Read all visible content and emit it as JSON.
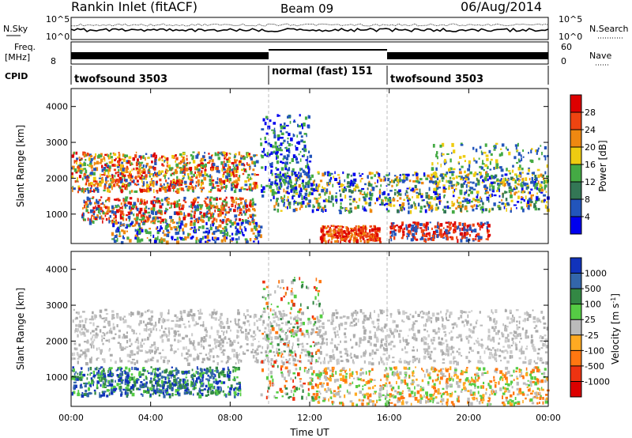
{
  "header": {
    "station": "Rankin Inlet (fitACF)",
    "beam": "Beam 09",
    "date": "06/Aug/2014"
  },
  "noise_panel": {
    "left_label": "N.Sky",
    "right_label": "N.Search",
    "ticks_left": [
      "10^5",
      "10^0"
    ],
    "ticks_right": [
      "10^5",
      "10^0"
    ]
  },
  "freq_panel": {
    "left_label_1": "Freq.",
    "left_label_2": "[MHz]",
    "right_label": "Nave",
    "ticks_left": [
      "8"
    ],
    "ticks_right": [
      "60",
      "0"
    ]
  },
  "cpid_panel": {
    "label": "CPID",
    "segments": [
      {
        "name": "twofsound 3503",
        "start_h": 0,
        "end_h": 10
      },
      {
        "name": "normal (fast) 151",
        "start_h": 10,
        "end_h": 16
      },
      {
        "name": "twofsound 3503",
        "start_h": 16,
        "end_h": 24
      }
    ]
  },
  "x_axis": {
    "label": "Time UT",
    "range_h": [
      0,
      24
    ],
    "ticks": [
      "00:00",
      "04:00",
      "08:00",
      "12:00",
      "16:00",
      "20:00",
      "00:00"
    ],
    "tick_hours": [
      0,
      4,
      8,
      12,
      16,
      20,
      24
    ]
  },
  "chart_data": [
    {
      "type": "heatmap",
      "title": "",
      "ylabel": "Slant Range [km]",
      "ylim": [
        180,
        4500
      ],
      "yticks": [
        1000,
        2000,
        3000,
        4000
      ],
      "colorbar": {
        "label": "Power [dB]",
        "levels": [
          4,
          8,
          12,
          16,
          20,
          24,
          28
        ],
        "colors": [
          "#0000ee",
          "#2255bb",
          "#337755",
          "#44aa44",
          "#eecc11",
          "#ee8811",
          "#ee4411",
          "#dd0000"
        ]
      }
    },
    {
      "type": "heatmap",
      "title": "",
      "ylabel": "Slant Range [km]",
      "ylim": [
        180,
        4500
      ],
      "yticks": [
        1000,
        2000,
        3000,
        4000
      ],
      "colorbar": {
        "label": "Velocity",
        "unit": "[m s",
        "unit_exp": "-1",
        "levels": [
          "1000",
          "500",
          "100",
          "25",
          "-25",
          "-100",
          "-500",
          "-1000"
        ],
        "colors": [
          "#1133bb",
          "#3366aa",
          "#338844",
          "#55cc44",
          "#bbbbbb",
          "#ffaa22",
          "#ff7711",
          "#ee3311",
          "#dd0000"
        ]
      }
    }
  ]
}
